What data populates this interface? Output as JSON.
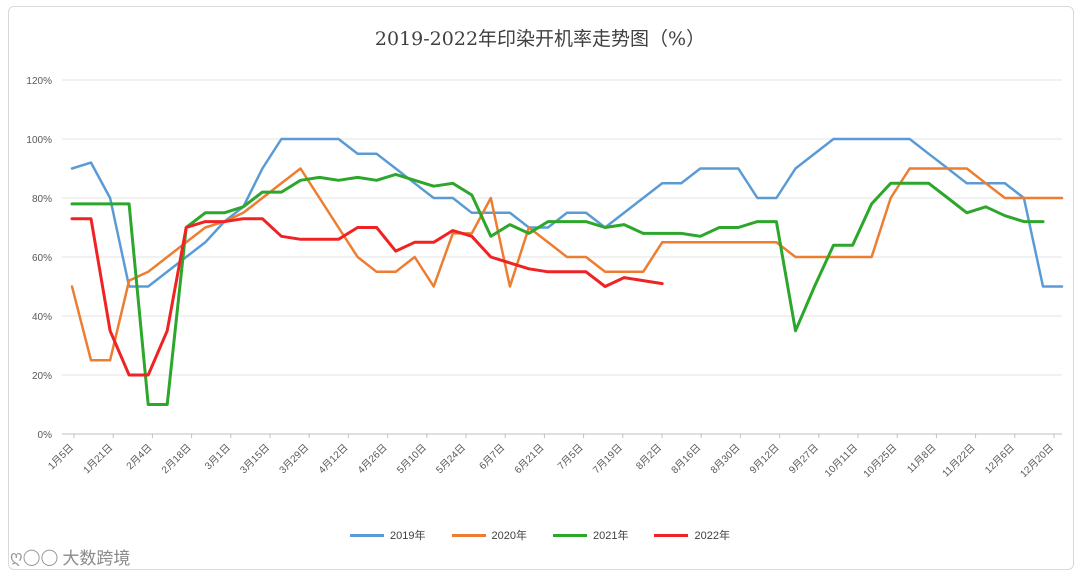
{
  "chart_data": {
    "type": "line",
    "title": "2019-2022年印染开机率走势图（%）",
    "xlabel": "",
    "ylabel": "",
    "ylim": [
      0,
      120
    ],
    "yticks": [
      "0%",
      "20%",
      "40%",
      "60%",
      "80%",
      "100%",
      "120%"
    ],
    "grid": true,
    "legend_position": "bottom",
    "x_labels": [
      "1月5日",
      "1月21日",
      "2月4日",
      "2月18日",
      "3月1日",
      "3月15日",
      "3月29日",
      "4月12日",
      "4月26日",
      "5月10日",
      "5月24日",
      "6月7日",
      "6月21日",
      "7月5日",
      "7月19日",
      "8月2日",
      "8月16日",
      "8月30日",
      "9月12日",
      "9月27日",
      "10月11日",
      "10月25日",
      "11月8日",
      "11月22日",
      "12月6日",
      "12月20日"
    ],
    "series": [
      {
        "name": "2019年",
        "color": "#5b9bd5",
        "values": [
          90,
          92,
          80,
          50,
          50,
          55,
          60,
          65,
          72,
          77,
          90,
          100,
          100,
          100,
          100,
          95,
          95,
          90,
          85,
          80,
          80,
          75,
          75,
          75,
          70,
          70,
          75,
          75,
          70,
          75,
          80,
          85,
          85,
          90,
          90,
          90,
          80,
          80,
          90,
          95,
          100,
          100,
          100,
          100,
          100,
          95,
          90,
          85,
          85,
          85,
          80,
          50,
          50
        ]
      },
      {
        "name": "2020年",
        "color": "#ed7d31",
        "values": [
          50,
          25,
          25,
          52,
          55,
          60,
          65,
          70,
          72,
          75,
          80,
          85,
          90,
          80,
          70,
          60,
          55,
          55,
          60,
          50,
          68,
          68,
          80,
          50,
          70,
          65,
          60,
          60,
          55,
          55,
          55,
          65,
          65,
          65,
          65,
          65,
          65,
          65,
          60,
          60,
          60,
          60,
          60,
          80,
          90,
          90,
          90,
          90,
          85,
          80,
          80,
          80,
          80
        ]
      },
      {
        "name": "2021年",
        "color": "#2ca72c",
        "values": [
          78,
          78,
          78,
          78,
          10,
          10,
          70,
          75,
          75,
          77,
          82,
          82,
          86,
          87,
          86,
          87,
          86,
          88,
          86,
          84,
          85,
          81,
          67,
          71,
          68,
          72,
          72,
          72,
          70,
          71,
          68,
          68,
          68,
          67,
          70,
          70,
          72,
          72,
          35,
          50,
          64,
          64,
          78,
          85,
          85,
          85,
          80,
          75,
          77,
          74,
          72,
          72
        ]
      },
      {
        "name": "2022年",
        "color": "#ef2323",
        "values": [
          73,
          73,
          35,
          20,
          20,
          35,
          70,
          72,
          72,
          73,
          73,
          67,
          66,
          66,
          66,
          70,
          70,
          62,
          65,
          65,
          69,
          67,
          60,
          58,
          56,
          55,
          55,
          55,
          50,
          53,
          52,
          51
        ]
      }
    ]
  },
  "watermark": {
    "logo_glyph": "ღ◯◯",
    "text": "大数跨境"
  }
}
